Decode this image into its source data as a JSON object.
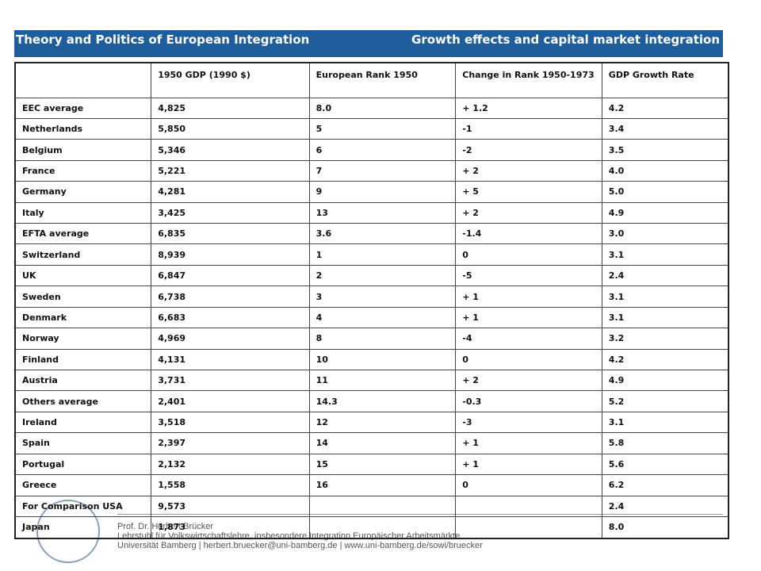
{
  "header": {
    "left": "Theory and Politics of European Integration",
    "right": "Growth effects and capital market integration"
  },
  "table": {
    "columns": [
      "1950 GDP (1990 $)",
      "European Rank 1950",
      "Change in Rank 1950-1973",
      "GDP Growth Rate"
    ],
    "rows": [
      [
        "EEC average",
        "4,825",
        "8.0",
        "+ 1.2",
        "4.2"
      ],
      [
        "Netherlands",
        "5,850",
        "5",
        "-1",
        "3.4"
      ],
      [
        "Belgium",
        "5,346",
        "6",
        "-2",
        "3.5"
      ],
      [
        "France",
        "5,221",
        "7",
        "+ 2",
        "4.0"
      ],
      [
        "Germany",
        "4,281",
        "9",
        "+ 5",
        "5.0"
      ],
      [
        "Italy",
        "3,425",
        "13",
        "+ 2",
        "4.9"
      ],
      [
        "EFTA average",
        "6,835",
        "3.6",
        "-1.4",
        "3.0"
      ],
      [
        "Switzerland",
        "8,939",
        "1",
        "0",
        "3.1"
      ],
      [
        "UK",
        "6,847",
        "2",
        "-5",
        "2.4"
      ],
      [
        "Sweden",
        "6,738",
        "3",
        "+ 1",
        "3.1"
      ],
      [
        "Denmark",
        "6,683",
        "4",
        "+ 1",
        "3.1"
      ],
      [
        "Norway",
        "4,969",
        "8",
        "-4",
        "3.2"
      ],
      [
        "Finland",
        "4,131",
        "10",
        "0",
        "4.2"
      ],
      [
        "Austria",
        "3,731",
        "11",
        "+ 2",
        "4.9"
      ],
      [
        "Others average",
        "2,401",
        "14.3",
        "-0.3",
        "5.2"
      ],
      [
        "Ireland",
        "3,518",
        "12",
        "-3",
        "3.1"
      ],
      [
        "Spain",
        "2,397",
        "14",
        "+ 1",
        "5.8"
      ],
      [
        "Portugal",
        "2,132",
        "15",
        "+ 1",
        "5.6"
      ],
      [
        "Greece",
        "1,558",
        "16",
        "0",
        "6.2"
      ],
      [
        "For Comparison USA",
        "9,573",
        null,
        null,
        "2.4"
      ],
      [
        "Japan",
        "1,873",
        null,
        null,
        "8.0"
      ]
    ]
  },
  "footer": {
    "name": "Prof. Dr. Herbert Brücker",
    "chair": "Lehrstuhl für Volkswirtschaftslehre, insbesondere Integration Europäischer Arbeitsmärkte",
    "contact": "Universität Bamberg | herbert.bruecker@uni-bamberg.de | www.uni-bamberg.de/sowi/bruecker"
  }
}
